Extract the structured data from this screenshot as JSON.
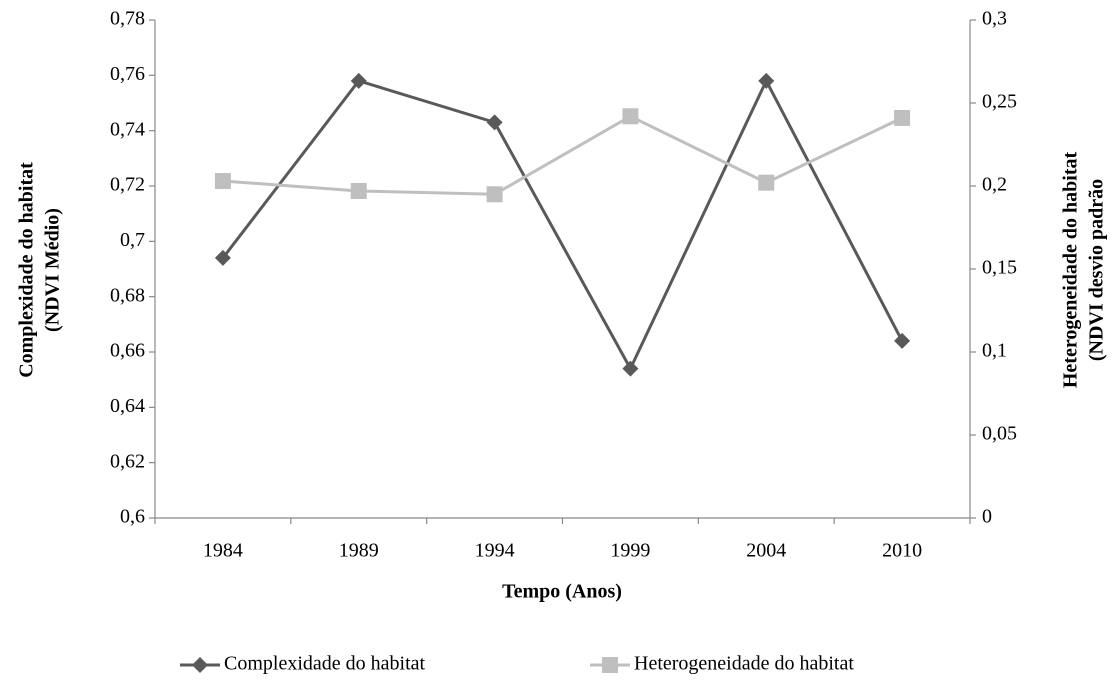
{
  "chart_data": {
    "type": "line",
    "ylabel": [
      "Complexidade  do habitat",
      "(NDVI Médio)"
    ],
    "y2label": [
      "Heterogeneidade do habitat",
      "(NDVI desvio padrão"
    ],
    "xlabel": "Tempo  (Anos)",
    "categories": [
      "1984",
      "1989",
      "1994",
      "1999",
      "2004",
      "2010"
    ],
    "series": [
      {
        "name": "Complexidade do habitat",
        "color": "#595959",
        "marker": "diamond",
        "values": [
          0.694,
          0.758,
          0.743,
          0.654,
          0.758,
          0.664
        ]
      },
      {
        "name": "Heterogeneidade do habitat",
        "color": "#bfbfbf",
        "marker": "square",
        "axis": "y2",
        "values": [
          0.203,
          0.197,
          0.195,
          0.242,
          0.202,
          0.241
        ]
      }
    ],
    "ylim": [
      0.6,
      0.78
    ],
    "yticks": [
      {
        "value": 0.6,
        "label": "0,6"
      },
      {
        "value": 0.62,
        "label": "0,62"
      },
      {
        "value": 0.64,
        "label": "0,64"
      },
      {
        "value": 0.66,
        "label": "0,66"
      },
      {
        "value": 0.68,
        "label": "0,68"
      },
      {
        "value": 0.7,
        "label": "0,7"
      },
      {
        "value": 0.72,
        "label": "0,72"
      },
      {
        "value": 0.74,
        "label": "0,74"
      },
      {
        "value": 0.76,
        "label": "0,76"
      },
      {
        "value": 0.78,
        "label": "0,78"
      }
    ],
    "y2lim": [
      0,
      0.3
    ],
    "y2ticks": [
      0,
      {
        "value": 0.05,
        "label": "0,05"
      },
      {
        "value": 0.1,
        "label": "0,1"
      },
      {
        "value": 0.15,
        "label": "0,15"
      },
      {
        "value": 0.2,
        "label": "0,2"
      },
      {
        "value": 0.25,
        "label": "0,25"
      },
      {
        "value": 0.3,
        "label": "0,3"
      }
    ],
    "grid": false,
    "legend": "bottom"
  }
}
